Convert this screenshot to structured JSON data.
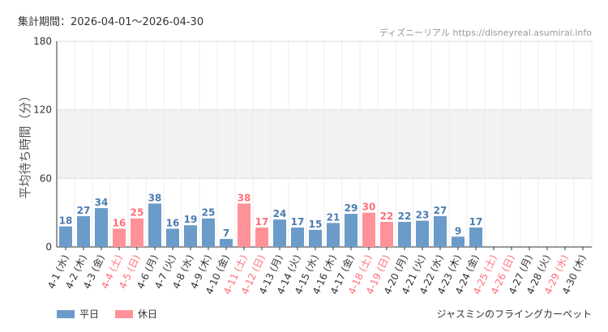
{
  "header": {
    "period": "集計期間：2026-04-01～2026-04-30",
    "source": "ディズニーリアル https://disneyreal.asumirai.info"
  },
  "footer": {
    "ride_name": "ジャスミンのフライングカーペット"
  },
  "chart_data": {
    "type": "bar",
    "ylabel": "平均待ち時間（分）",
    "ylim": [
      0,
      180
    ],
    "yticks": [
      0,
      60,
      120,
      180
    ],
    "shaded_band": [
      60,
      120
    ],
    "legend": [
      {
        "label": "平日",
        "color": "#6b9bc9"
      },
      {
        "label": "休日",
        "color": "#ff9298"
      }
    ],
    "colors": {
      "weekday": "#6b9bc9",
      "holiday": "#ff9298",
      "holiday_label": "#ff6e78",
      "weekday_label": "#333333"
    },
    "categories": [
      "4-1 (水)",
      "4-2 (木)",
      "4-3 (金)",
      "4-4 (土)",
      "4-5 (日)",
      "4-6 (月)",
      "4-7 (火)",
      "4-8 (水)",
      "4-9 (木)",
      "4-10 (金)",
      "4-11 (土)",
      "4-12 (日)",
      "4-13 (月)",
      "4-14 (火)",
      "4-15 (水)",
      "4-16 (木)",
      "4-17 (金)",
      "4-18 (土)",
      "4-19 (日)",
      "4-20 (月)",
      "4-21 (火)",
      "4-22 (水)",
      "4-23 (木)",
      "4-24 (金)",
      "4-25 (土)",
      "4-26 (日)",
      "4-27 (月)",
      "4-28 (火)",
      "4-29 (水)",
      "4-30 (木)"
    ],
    "values": [
      18,
      27,
      34,
      16,
      25,
      38,
      16,
      19,
      25,
      7,
      38,
      17,
      24,
      17,
      15,
      21,
      29,
      30,
      22,
      22,
      23,
      27,
      9,
      17,
      null,
      null,
      null,
      null,
      null,
      null
    ],
    "holiday": [
      false,
      false,
      false,
      true,
      true,
      false,
      false,
      false,
      false,
      false,
      true,
      true,
      false,
      false,
      false,
      false,
      false,
      true,
      true,
      false,
      false,
      false,
      false,
      false,
      true,
      true,
      false,
      false,
      true,
      false
    ]
  }
}
